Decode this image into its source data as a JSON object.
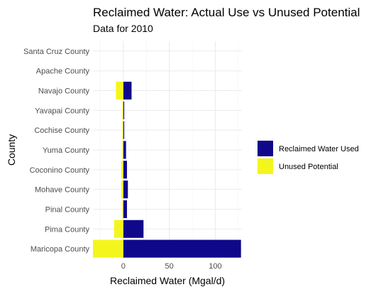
{
  "chart_data": {
    "type": "bar",
    "orientation": "horizontal",
    "stacked": "diverging",
    "title": "Reclaimed Water: Actual Use vs Unused Potential",
    "subtitle": "Data for 2010",
    "xlabel": "Reclaimed Water (Mgal/d)",
    "ylabel": "County",
    "xlim": [
      -33,
      129
    ],
    "xticks": [
      0,
      50,
      100
    ],
    "grid": true,
    "legend_position": "right",
    "categories": [
      "Maricopa County",
      "Pima County",
      "Pinal County",
      "Mohave County",
      "Coconino County",
      "Yuma County",
      "Cochise County",
      "Yavapai County",
      "Navajo County",
      "Apache County",
      "Santa Cruz County"
    ],
    "series": [
      {
        "name": "Reclaimed Water Used",
        "color": "#10088a",
        "values": [
          128,
          22,
          4,
          5,
          4,
          3,
          1,
          1,
          9,
          0,
          0
        ]
      },
      {
        "name": "Unused Potential",
        "color": "#f5f51e",
        "values": [
          -33,
          -10,
          -1,
          -2,
          -2,
          -1,
          -1,
          -1,
          -8,
          0,
          0
        ]
      }
    ]
  }
}
